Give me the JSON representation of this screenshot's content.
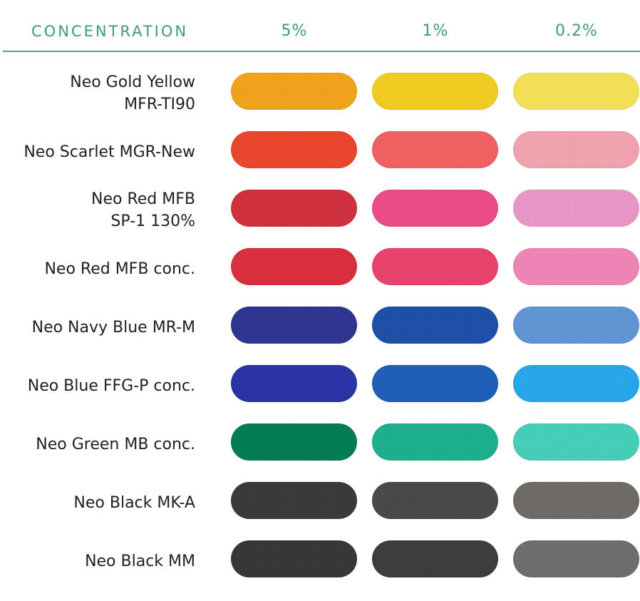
{
  "header": {
    "title": "CONCENTRATION",
    "columns": [
      "5%",
      "1%",
      "0.2%"
    ]
  },
  "rows": [
    {
      "label_lines": [
        "Neo Gold Yellow",
        "MFR-TI90"
      ],
      "colors": [
        "#f0a21a",
        "#efcb1f",
        "#f2df56"
      ]
    },
    {
      "label_lines": [
        "Neo Scarlet MGR-New"
      ],
      "colors": [
        "#e8452c",
        "#ee6060",
        "#efa2ad"
      ]
    },
    {
      "label_lines": [
        "Neo Red MFB",
        "SP-1 130%"
      ],
      "colors": [
        "#cf2f3d",
        "#ea4b86",
        "#e895c8"
      ]
    },
    {
      "label_lines": [
        "Neo Red MFB conc."
      ],
      "colors": [
        "#d82d3c",
        "#e8416c",
        "#ee83b6"
      ]
    },
    {
      "label_lines": [
        "Neo Navy Blue MR-M"
      ],
      "colors": [
        "#2e338f",
        "#1d4ea6",
        "#5f93d1"
      ]
    },
    {
      "label_lines": [
        "Neo Blue FFG-P conc."
      ],
      "colors": [
        "#2932a6",
        "#1f5eb8",
        "#25a6e7"
      ]
    },
    {
      "label_lines": [
        "Neo Green MB conc."
      ],
      "colors": [
        "#037b54",
        "#1cae8d",
        "#44cdb8"
      ]
    },
    {
      "label_lines": [
        "Neo Black MK-A"
      ],
      "colors": [
        "#393939",
        "#4a4847",
        "#6d6a66"
      ]
    },
    {
      "label_lines": [
        "Neo Black MM"
      ],
      "colors": [
        "#363636",
        "#3b3b3b",
        "#6f6d6b"
      ]
    }
  ]
}
